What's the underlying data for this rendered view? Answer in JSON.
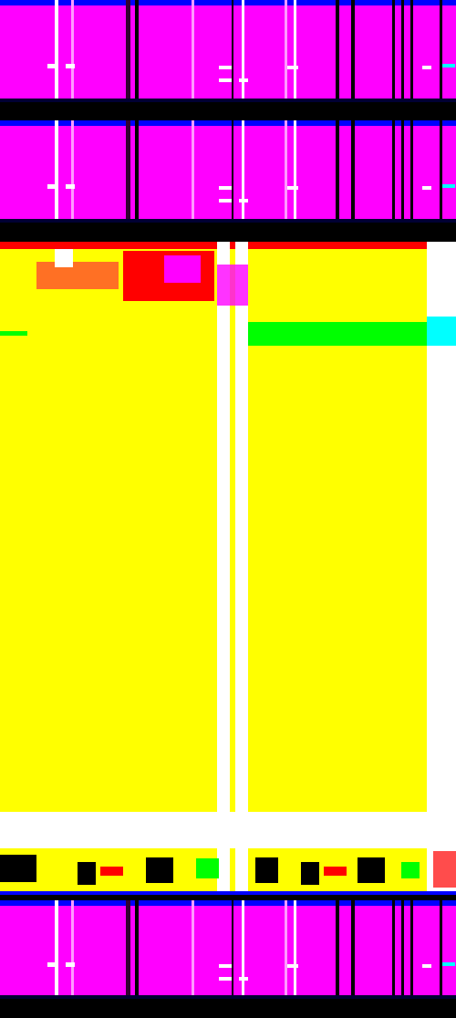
{
  "palette": {
    "magenta": "#ff00ff",
    "yellow": "#ffff00",
    "black": "#000000",
    "white": "#ffffff",
    "blue": "#0000ff",
    "red": "#ff0000",
    "green": "#00ff00",
    "cyan": "#00ffff",
    "navy": "#000033",
    "pink": "#ff99ff"
  },
  "bands": [
    {
      "name": "magenta-band-top",
      "color": "magenta"
    },
    {
      "name": "black-divider-1",
      "color": "black"
    },
    {
      "name": "magenta-band-second",
      "color": "magenta"
    },
    {
      "name": "black-divider-2",
      "color": "black"
    },
    {
      "name": "yellow-field",
      "color": "yellow"
    },
    {
      "name": "black-divider-3",
      "color": "black"
    },
    {
      "name": "magenta-band-bottom",
      "color": "magenta"
    }
  ]
}
